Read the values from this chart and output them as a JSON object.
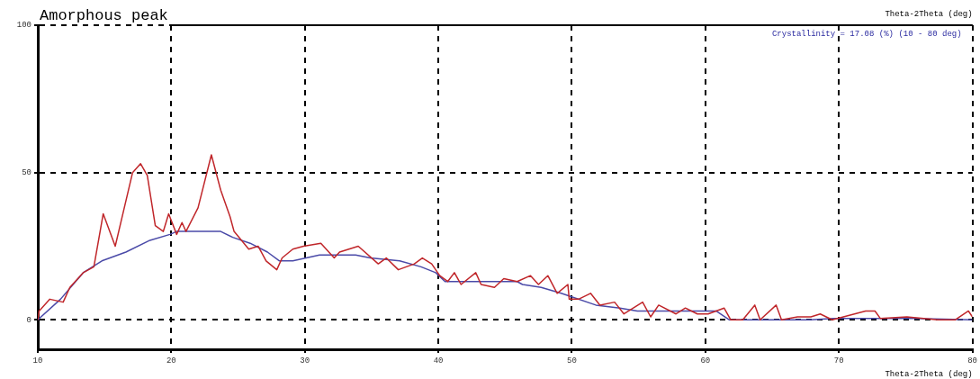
{
  "chart_data": {
    "type": "line",
    "title": "Amorphous peak",
    "xlabel": "Theta-2Theta (deg)",
    "annotations": [
      "Theta-2Theta (deg)",
      "Crystallinity = 17.08 (%) (10 - 80 deg)"
    ],
    "xlim": [
      10,
      80
    ],
    "xticks": [
      10,
      20,
      30,
      40,
      50,
      60,
      70,
      80
    ],
    "ylim": [
      -10,
      100
    ],
    "yticks": [
      0,
      50,
      100
    ],
    "grid": true,
    "line_style": "solid",
    "marker": "none",
    "series": [
      {
        "color": "#c0262a",
        "x": [
          10,
          10.1,
          10.9,
          11.9,
          12.4,
          13.4,
          14.2,
          14.9,
          15.8,
          17.1,
          17.7,
          18.2,
          18.8,
          19.4,
          19.8,
          20.4,
          20.8,
          21.1,
          22.0,
          23.0,
          23.7,
          24.4,
          24.7,
          25.8,
          26.5,
          27.1,
          27.9,
          28.3,
          29.1,
          29.9,
          31.2,
          32.2,
          32.6,
          34.0,
          35.5,
          36.1,
          37.0,
          38.2,
          38.8,
          39.5,
          40.1,
          40.7,
          41.2,
          41.7,
          42.8,
          43.2,
          44.2,
          44.9,
          45.9,
          46.9,
          47.5,
          48.2,
          48.9,
          49.7,
          49.8,
          50.5,
          51.4,
          52.1,
          53.2,
          53.9,
          55.3,
          55.9,
          56.5,
          57.8,
          58.5,
          59.4,
          60.2,
          61.4,
          61.9,
          62.8,
          63.7,
          64.1,
          65.3,
          65.7,
          66.9,
          67.9,
          68.6,
          69.5,
          72.0,
          72.7,
          73.1,
          75.1,
          77.4,
          78.7,
          79.7,
          80
        ],
        "values": [
          0,
          3,
          7,
          6,
          11,
          16,
          18,
          36,
          25,
          50,
          53,
          49,
          32,
          30,
          36,
          29,
          33,
          30,
          38,
          56,
          44,
          35,
          30,
          24,
          25,
          20,
          17,
          21,
          24,
          25,
          26,
          21,
          23,
          25,
          19,
          21,
          17,
          19,
          21,
          19,
          15,
          13,
          16,
          12,
          16,
          12,
          11,
          14,
          13,
          15,
          12,
          15,
          9,
          12,
          7,
          7,
          9,
          5,
          6,
          2,
          6,
          1,
          5,
          2,
          4,
          2,
          2,
          4,
          0,
          0,
          5,
          0,
          5,
          0,
          1,
          1,
          2,
          0,
          3,
          3,
          0.5,
          1,
          0,
          0,
          3,
          1
        ]
      },
      {
        "color": "#4a4aa8",
        "x": [
          10,
          11.7,
          13.4,
          14.8,
          16.6,
          18.4,
          19.9,
          20.4,
          23.7,
          24.6,
          25.9,
          27.2,
          28.1,
          29.1,
          31.1,
          33.8,
          34.9,
          37.1,
          38.7,
          39.8,
          40.5,
          45.9,
          46.3,
          47.7,
          49.2,
          51.8,
          53.6,
          54.9,
          56.7,
          60.8,
          61.8,
          67.8,
          69.6,
          75.1,
          80
        ],
        "values": [
          0,
          7,
          16,
          20,
          23,
          27,
          29,
          30,
          30,
          28,
          26,
          23,
          20,
          20,
          22,
          22,
          21,
          20,
          18,
          16,
          13,
          13,
          12,
          11,
          9,
          5,
          4,
          3,
          3,
          3,
          0,
          0,
          0.5,
          0.5,
          0
        ]
      }
    ]
  }
}
